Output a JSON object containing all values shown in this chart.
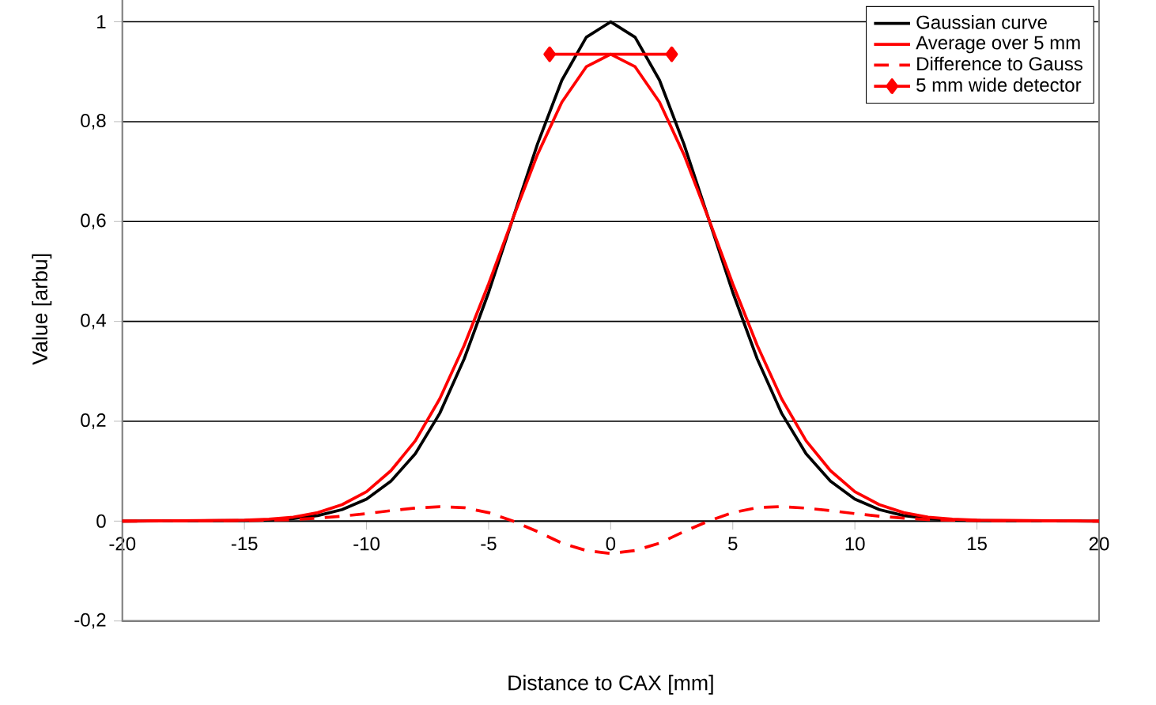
{
  "chart_data": {
    "type": "line",
    "xlabel": "Distance to CAX [mm]",
    "ylabel": "Value [arbu]",
    "xlim": [
      -20,
      20
    ],
    "xticks": [
      -20,
      -15,
      -10,
      -5,
      0,
      5,
      10,
      15,
      20
    ],
    "ylim": [
      -0.2,
      1.05
    ],
    "yticks": [
      {
        "value": -0.2,
        "label": "-0,2"
      },
      {
        "value": 0,
        "label": "0"
      },
      {
        "value": 0.2,
        "label": "0,2"
      },
      {
        "value": 0.4,
        "label": "0,4"
      },
      {
        "value": 0.6,
        "label": "0,6"
      },
      {
        "value": 0.8,
        "label": "0,8"
      },
      {
        "value": 1,
        "label": "1"
      }
    ],
    "grid": "y",
    "legend": "top right",
    "series": [
      {
        "name": "Gaussian curve",
        "color": "#000000",
        "line_style": "solid",
        "marker": "none",
        "x": [
          -20,
          -15,
          -14,
          -13,
          -12,
          -11,
          -10,
          -9,
          -8,
          -7,
          -6,
          -5,
          -4,
          -3,
          -2,
          -1,
          0,
          1,
          2,
          3,
          4,
          5,
          6,
          7,
          8,
          9,
          10,
          11,
          12,
          13,
          14,
          15,
          20
        ],
        "values": [
          0,
          0.001,
          0.002,
          0.005,
          0.011,
          0.023,
          0.044,
          0.08,
          0.135,
          0.216,
          0.325,
          0.458,
          0.607,
          0.755,
          0.883,
          0.969,
          1,
          0.969,
          0.883,
          0.755,
          0.607,
          0.458,
          0.325,
          0.216,
          0.135,
          0.08,
          0.044,
          0.023,
          0.011,
          0.005,
          0.002,
          0.001,
          0
        ]
      },
      {
        "name": "Average over 5 mm",
        "color": "#ff0000",
        "line_style": "solid",
        "marker": "none",
        "x": [
          -20,
          -15,
          -14,
          -13,
          -12,
          -11,
          -10,
          -9,
          -8,
          -7,
          -6,
          -5,
          -4,
          -3,
          -2,
          -1,
          0,
          1,
          2,
          3,
          4,
          5,
          6,
          7,
          8,
          9,
          10,
          11,
          12,
          13,
          14,
          15,
          20
        ],
        "values": [
          0,
          0.002,
          0.004,
          0.008,
          0.017,
          0.033,
          0.059,
          0.101,
          0.161,
          0.245,
          0.352,
          0.475,
          0.607,
          0.734,
          0.839,
          0.91,
          0.935,
          0.91,
          0.839,
          0.734,
          0.607,
          0.475,
          0.352,
          0.245,
          0.161,
          0.101,
          0.059,
          0.033,
          0.017,
          0.008,
          0.004,
          0.002,
          0
        ]
      },
      {
        "name": "Difference to Gauss",
        "color": "#ff0000",
        "line_style": "dashed",
        "marker": "none",
        "x": [
          -20,
          -15,
          -14,
          -13,
          -12,
          -11,
          -10,
          -9,
          -8,
          -7,
          -6,
          -5,
          -4,
          -3,
          -2,
          -1,
          0,
          1,
          2,
          3,
          4,
          5,
          6,
          7,
          8,
          9,
          10,
          11,
          12,
          13,
          14,
          15,
          20
        ],
        "values": [
          0,
          0.001,
          0.002,
          0.003,
          0.006,
          0.01,
          0.015,
          0.021,
          0.026,
          0.029,
          0.027,
          0.017,
          0,
          -0.021,
          -0.044,
          -0.059,
          -0.065,
          -0.059,
          -0.044,
          -0.021,
          0,
          0.017,
          0.027,
          0.029,
          0.026,
          0.021,
          0.015,
          0.01,
          0.006,
          0.003,
          0.002,
          0.001,
          0
        ]
      },
      {
        "name": "5 mm wide detector",
        "color": "#ff0000",
        "line_style": "solid",
        "marker": "diamond",
        "x": [
          -2.5,
          2.5
        ],
        "values": [
          0.935,
          0.935
        ]
      }
    ]
  }
}
